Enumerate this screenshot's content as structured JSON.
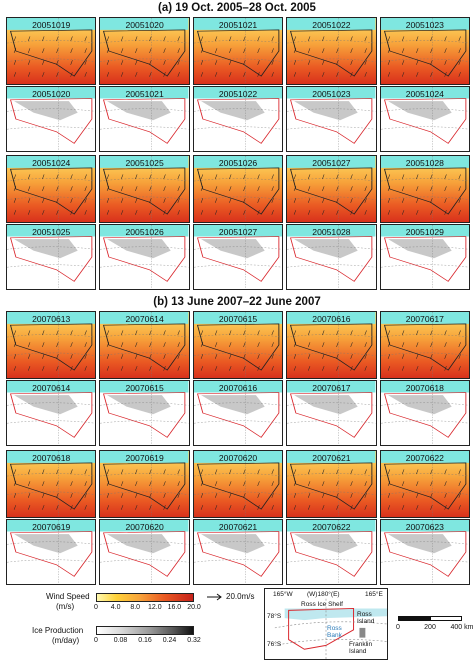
{
  "section_a": {
    "title": "(a) 19 Oct. 2005–28 Oct. 2005",
    "wind_rows": [
      [
        "20051019",
        "20051020",
        "20051021",
        "20051022",
        "20051023"
      ],
      [
        "20051024",
        "20051025",
        "20051026",
        "20051027",
        "20051028"
      ]
    ],
    "ice_rows": [
      [
        "20051020",
        "20051021",
        "20051022",
        "20051023",
        "20051024"
      ],
      [
        "20051025",
        "20051026",
        "20051027",
        "20051028",
        "20051029"
      ]
    ]
  },
  "section_b": {
    "title": "(b) 13 June 2007–22 June 2007",
    "wind_rows": [
      [
        "20070613",
        "20070614",
        "20070615",
        "20070616",
        "20070617"
      ],
      [
        "20070618",
        "20070619",
        "20070620",
        "20070621",
        "20070622"
      ]
    ],
    "ice_rows": [
      [
        "20070614",
        "20070615",
        "20070616",
        "20070617",
        "20070618"
      ],
      [
        "20070619",
        "20070620",
        "20070621",
        "20070622",
        "20070623"
      ]
    ]
  },
  "legend": {
    "wind_label": "Wind Speed",
    "wind_unit": "(m/s)",
    "wind_ticks": [
      "0",
      "4.0",
      "8.0",
      "12.0",
      "16.0",
      "20.0"
    ],
    "ice_label": "Ice Production",
    "ice_unit": "(m/day)",
    "ice_ticks": [
      "0",
      "0.08",
      "0.16",
      "0.24",
      "0.32"
    ],
    "arrow_label": "20.0m/s",
    "colors": {
      "wind_low": "#fff9b0",
      "wind_high": "#c6221a",
      "ice_low": "#ffffff",
      "ice_high": "#111111",
      "open_ocean": "#7fe7e0",
      "polynya_outline": "#d9262c"
    }
  },
  "inset_map": {
    "lon_labels": [
      "165°W",
      "(W)180°(E)",
      "165°E"
    ],
    "lat_labels": [
      "78°S",
      "76°S"
    ],
    "place_labels": [
      "Ross Ice Shelf",
      "Ross Island",
      "Ross Bank",
      "Franklin Island"
    ]
  },
  "scale_bar": {
    "ticks": [
      "0",
      "200",
      "400 km"
    ]
  }
}
